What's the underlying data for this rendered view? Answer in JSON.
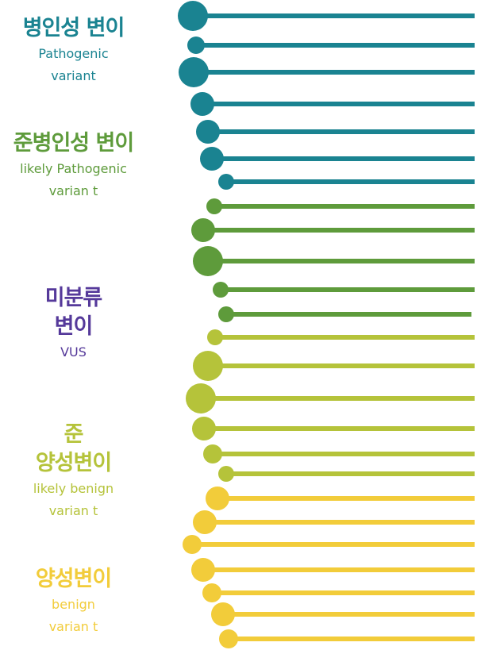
{
  "groups": [
    {
      "id": "pathogenic",
      "title_lines": [
        "병인성 변이"
      ],
      "sub_lines": [
        "Pathogenic",
        "variant"
      ],
      "color": "#1a8391"
    },
    {
      "id": "likely-pathogenic",
      "title_lines": [
        "준병인성 변이"
      ],
      "sub_lines": [
        "likely Pathogenic",
        "varian t"
      ],
      "color": "#5e9b3b"
    },
    {
      "id": "vus",
      "title_lines": [
        "미분류",
        "변이"
      ],
      "sub_lines": [
        "VUS"
      ],
      "color": "#55399a"
    },
    {
      "id": "likely-benign",
      "title_lines": [
        "준",
        "양성변이"
      ],
      "sub_lines": [
        "likely benign",
        "varian t"
      ],
      "color": "#b5c33a"
    },
    {
      "id": "benign",
      "title_lines": [
        "양성변이"
      ],
      "sub_lines": [
        "benign",
        "varian t"
      ],
      "color": "#f2cc3a"
    }
  ],
  "colors": {
    "pathogenic": "#1a8391",
    "likely-pathogenic": "#5e9b3b",
    "likely-benign": "#b5c33a",
    "benign": "#f2cc3a"
  }
}
